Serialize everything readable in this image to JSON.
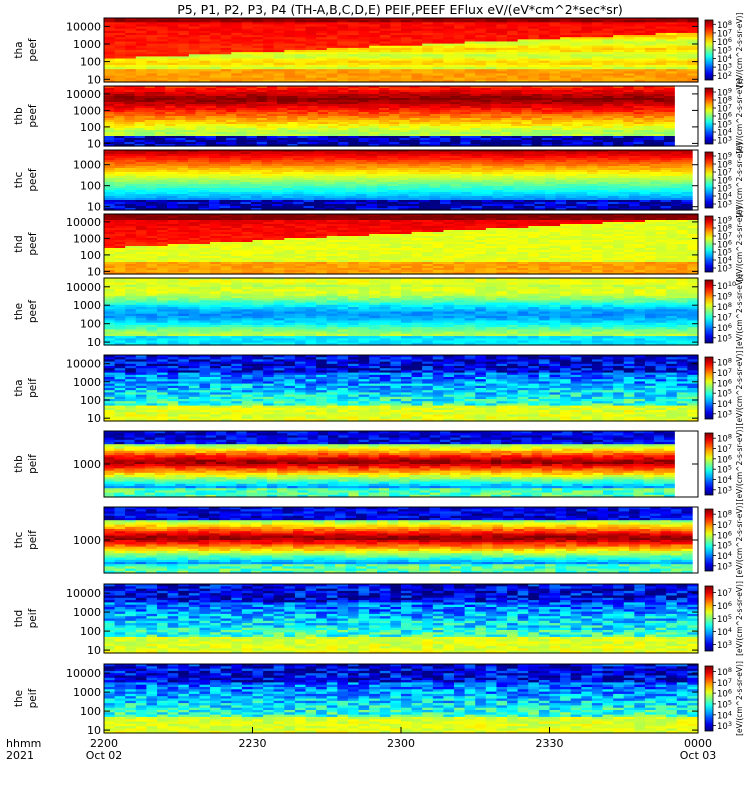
{
  "figure": {
    "title": "P5, P1, P2, P3, P4 (TH-A,B,C,D,E) PEIF,PEEF EFlux eV/(eV*cm^2*sec*sr)",
    "time_axis": {
      "row_label_1": "hhmm",
      "row_label_2": "2021",
      "ticks": [
        {
          "hhmm": "2200",
          "date": "Oct 02"
        },
        {
          "hhmm": "2230",
          "date": ""
        },
        {
          "hhmm": "2300",
          "date": ""
        },
        {
          "hhmm": "2330",
          "date": ""
        },
        {
          "hhmm": "0000",
          "date": "Oct 03"
        }
      ]
    }
  },
  "chart_data": [
    {
      "type": "heatmap",
      "probe": "tha",
      "label_top": "tha",
      "label_bottom": "peef",
      "species": "electron",
      "yscale": "log",
      "yticks": [
        "10",
        "100",
        "1000",
        "10000"
      ],
      "ylim_eV": [
        7,
        30000
      ],
      "colorbar_ticks": [
        "10^2",
        "10^3",
        "10^4",
        "10^5",
        "10^6",
        "10^7",
        "10^8"
      ],
      "colorbar_label": "[eV/(cm^2-s-sr-eV)]",
      "end_fraction": 1.0
    },
    {
      "type": "heatmap",
      "probe": "thb",
      "label_top": "thb",
      "label_bottom": "peef",
      "species": "electron",
      "yscale": "log",
      "yticks": [
        "10",
        "100",
        "1000",
        "10000"
      ],
      "ylim_eV": [
        7,
        30000
      ],
      "colorbar_ticks": [
        "10^3",
        "10^4",
        "10^5",
        "10^6",
        "10^7",
        "10^8",
        "10^9"
      ],
      "colorbar_label": "[eV/(cm^2-s-sr-eV)]",
      "end_fraction": 0.96
    },
    {
      "type": "heatmap",
      "probe": "thc",
      "label_top": "thc",
      "label_bottom": "peef",
      "species": "electron",
      "yscale": "log",
      "yticks": [
        "10",
        "100",
        "1000"
      ],
      "ylim_eV": [
        7,
        5000
      ],
      "colorbar_ticks": [
        "10^3",
        "10^4",
        "10^5",
        "10^6",
        "10^7",
        "10^8",
        "10^9"
      ],
      "colorbar_label": "[eV/(cm^2-s-sr-eV)]",
      "end_fraction": 0.99
    },
    {
      "type": "heatmap",
      "probe": "thd",
      "label_top": "thd",
      "label_bottom": "peef",
      "species": "electron",
      "yscale": "log",
      "yticks": [
        "10",
        "100",
        "1000",
        "10000"
      ],
      "ylim_eV": [
        7,
        30000
      ],
      "colorbar_ticks": [
        "10^3",
        "10^4",
        "10^5",
        "10^6",
        "10^7",
        "10^8",
        "10^9"
      ],
      "colorbar_label": "[eV/(cm^2-s-sr-eV)]",
      "end_fraction": 1.0
    },
    {
      "type": "heatmap",
      "probe": "the",
      "label_top": "the",
      "label_bottom": "peef",
      "species": "electron",
      "yscale": "log",
      "yticks": [
        "10",
        "100",
        "1000",
        "10000"
      ],
      "ylim_eV": [
        7,
        30000
      ],
      "colorbar_ticks": [
        "10^5",
        "10^6",
        "10^7",
        "10^8",
        "10^9",
        "10^10"
      ],
      "colorbar_label": "[eV/(cm^2-s-sr-eV)]",
      "end_fraction": 1.0
    },
    {
      "type": "heatmap",
      "probe": "tha",
      "label_top": "tha",
      "label_bottom": "peif",
      "species": "ion",
      "yscale": "log",
      "yticks": [
        "10",
        "100",
        "1000",
        "10000"
      ],
      "ylim_eV": [
        7,
        30000
      ],
      "colorbar_ticks": [
        "10^3",
        "10^4",
        "10^5",
        "10^6",
        "10^7",
        "10^8"
      ],
      "colorbar_label": "[eV/(cm^2-s-sr-eV)]",
      "end_fraction": 1.0
    },
    {
      "type": "heatmap",
      "probe": "thb",
      "label_top": "thb",
      "label_bottom": "peif",
      "species": "ion",
      "yscale": "log",
      "yticks": [
        "1000"
      ],
      "ylim_eV": [
        50,
        20000
      ],
      "colorbar_ticks": [
        "10^3",
        "10^4",
        "10^5",
        "10^6",
        "10^7",
        "10^8"
      ],
      "colorbar_label": "[eV/(cm^2-s-sr-eV)]",
      "end_fraction": 0.96
    },
    {
      "type": "heatmap",
      "probe": "thc",
      "label_top": "thc",
      "label_bottom": "peif",
      "species": "ion",
      "yscale": "log",
      "yticks": [
        "1000"
      ],
      "ylim_eV": [
        50,
        20000
      ],
      "colorbar_ticks": [
        "10^3",
        "10^4",
        "10^5",
        "10^6",
        "10^7",
        "10^8"
      ],
      "colorbar_label": "[eV/(cm^2-s-sr-eV)]",
      "end_fraction": 0.99
    },
    {
      "type": "heatmap",
      "probe": "thd",
      "label_top": "thd",
      "label_bottom": "peif",
      "species": "ion",
      "yscale": "log",
      "yticks": [
        "10",
        "100",
        "1000",
        "10000"
      ],
      "ylim_eV": [
        7,
        30000
      ],
      "colorbar_ticks": [
        "10^3",
        "10^4",
        "10^5",
        "10^6",
        "10^7"
      ],
      "colorbar_label": "[eV/(cm^2-s-sr-eV)]",
      "end_fraction": 1.0
    },
    {
      "type": "heatmap",
      "probe": "the",
      "label_top": "the",
      "label_bottom": "peif",
      "species": "ion",
      "yscale": "log",
      "yticks": [
        "10",
        "100",
        "1000",
        "10000"
      ],
      "ylim_eV": [
        7,
        30000
      ],
      "colorbar_ticks": [
        "10^3",
        "10^4",
        "10^5",
        "10^6",
        "10^7",
        "10^8"
      ],
      "colorbar_label": "[eV/(cm^2-s-sr-eV)]",
      "end_fraction": 1.0
    }
  ]
}
